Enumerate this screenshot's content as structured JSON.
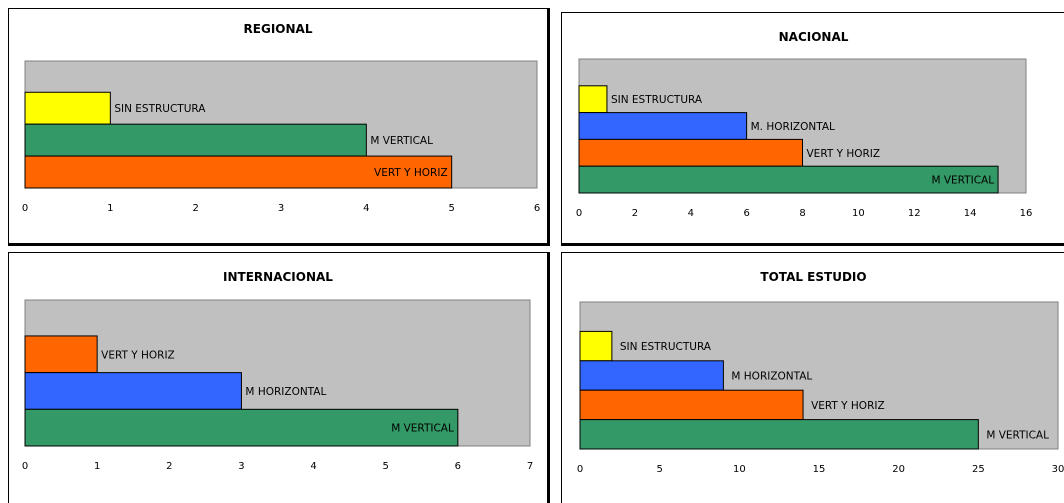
{
  "chart_data": [
    {
      "type": "bar",
      "orientation": "horizontal",
      "title": "REGIONAL",
      "xlim": [
        0,
        6
      ],
      "xticks": [
        0,
        1,
        2,
        3,
        4,
        5,
        6
      ],
      "grid": false,
      "plot_background": "#c0c0c0",
      "bars": [
        {
          "label": "SIN ESTRUCTURA",
          "value": 1,
          "color": "#ffff00"
        },
        {
          "label": "M VERTICAL",
          "value": 4,
          "color": "#339966"
        },
        {
          "label": "VERT Y HORIZ",
          "value": 5,
          "color": "#ff6600"
        }
      ]
    },
    {
      "type": "bar",
      "orientation": "horizontal",
      "title": "NACIONAL",
      "xlim": [
        0,
        16
      ],
      "xticks": [
        0,
        2,
        4,
        6,
        8,
        10,
        12,
        14,
        16
      ],
      "grid": false,
      "plot_background": "#c0c0c0",
      "bars": [
        {
          "label": "SIN ESTRUCTURA",
          "value": 1,
          "color": "#ffff00"
        },
        {
          "label": "M. HORIZONTAL",
          "value": 6,
          "color": "#3366ff"
        },
        {
          "label": "VERT Y HORIZ",
          "value": 8,
          "color": "#ff6600"
        },
        {
          "label": "M VERTICAL",
          "value": 15,
          "color": "#339966"
        }
      ]
    },
    {
      "type": "bar",
      "orientation": "horizontal",
      "title": "INTERNACIONAL",
      "xlim": [
        0,
        7
      ],
      "xticks": [
        0,
        1,
        2,
        3,
        4,
        5,
        6,
        7
      ],
      "grid": false,
      "plot_background": "#c0c0c0",
      "bars": [
        {
          "label": "VERT Y HORIZ",
          "value": 1,
          "color": "#ff6600"
        },
        {
          "label": "M HORIZONTAL",
          "value": 3,
          "color": "#3366ff"
        },
        {
          "label": "M VERTICAL",
          "value": 6,
          "color": "#339966"
        }
      ]
    },
    {
      "type": "bar",
      "orientation": "horizontal",
      "title": "TOTAL ESTUDIO",
      "xlim": [
        0,
        30
      ],
      "xticks": [
        0,
        5,
        10,
        15,
        20,
        25,
        30
      ],
      "grid": false,
      "plot_background": "#c0c0c0",
      "bars": [
        {
          "label": "SIN ESTRUCTURA",
          "value": 2,
          "color": "#ffff00"
        },
        {
          "label": "M HORIZONTAL",
          "value": 9,
          "color": "#3366ff"
        },
        {
          "label": "VERT Y HORIZ",
          "value": 14,
          "color": "#ff6600"
        },
        {
          "label": "M VERTICAL",
          "value": 25,
          "color": "#339966"
        }
      ]
    }
  ]
}
